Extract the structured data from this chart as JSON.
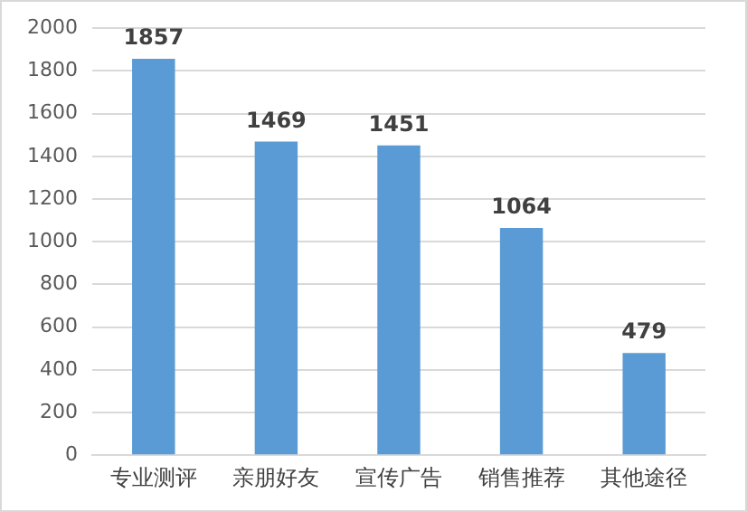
{
  "chart_data": {
    "type": "bar",
    "categories": [
      "专业测评",
      "亲朋好友",
      "宣传广告",
      "销售推荐",
      "其他途径"
    ],
    "values": [
      1857,
      1469,
      1451,
      1064,
      479
    ],
    "color": "#5b9bd5",
    "ylim": [
      0,
      2000
    ],
    "yticks": [
      0,
      200,
      400,
      600,
      800,
      1000,
      1200,
      1400,
      1600,
      1800,
      2000
    ],
    "grid": "y",
    "legend": false,
    "data_labels": true
  }
}
